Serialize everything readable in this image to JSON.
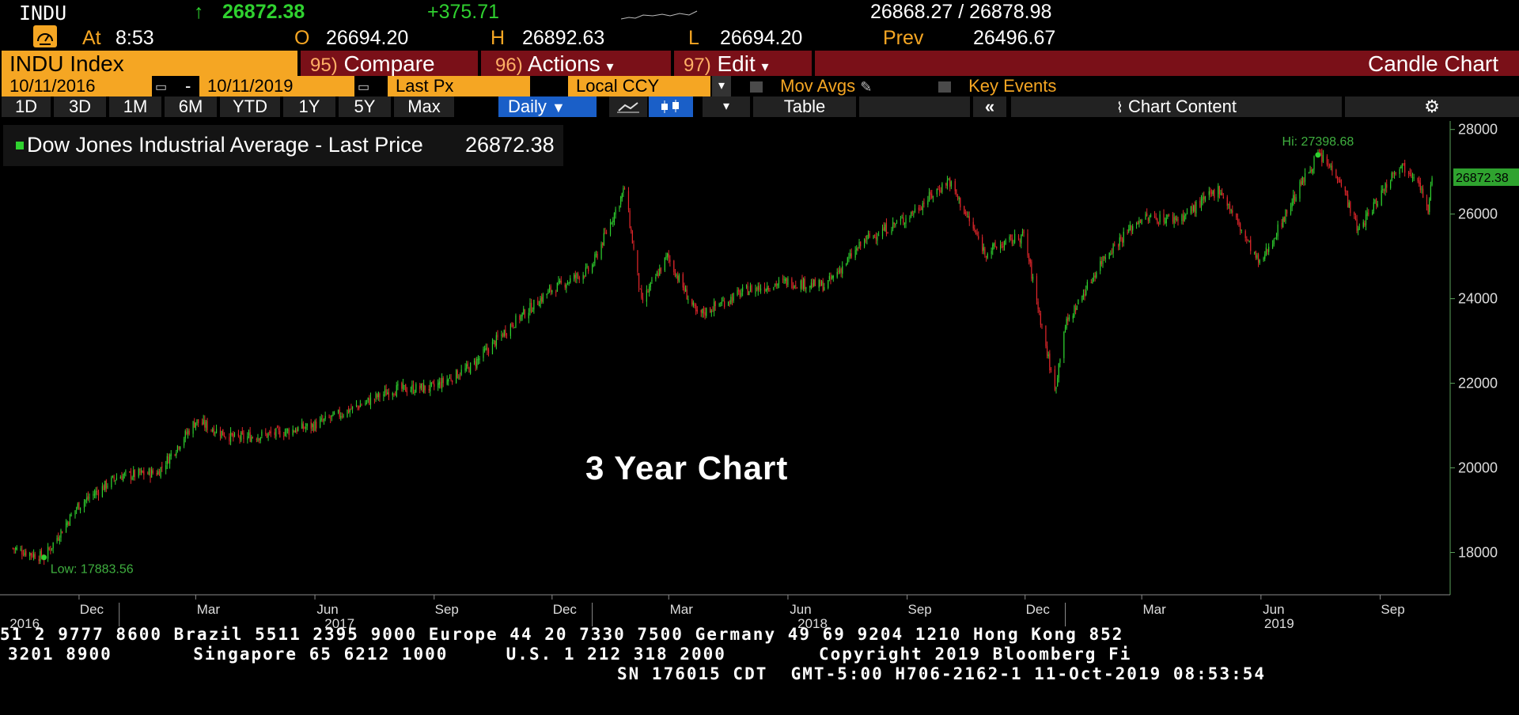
{
  "quote": {
    "ticker": "INDU",
    "arrow": "↑",
    "last": "26872.38",
    "change": "+375.71",
    "bid_ask": "26868.27 / 26878.98",
    "at_label": "At",
    "time": "8:53",
    "open_label": "O",
    "open": "26694.20",
    "high_label": "H",
    "high": "26892.63",
    "low_label": "L",
    "low": "26694.20",
    "prev_label": "Prev",
    "prev": "26496.67"
  },
  "toolbar": {
    "security": "INDU Index",
    "compare_num": "95)",
    "compare": "Compare",
    "actions_num": "96)",
    "actions": "Actions",
    "edit_num": "97)",
    "edit": "Edit",
    "chart_type": "Candle Chart"
  },
  "settings": {
    "start_date": "10/11/2016",
    "dash": "-",
    "end_date": "10/11/2019",
    "field": "Last Px",
    "currency": "Local CCY",
    "mov_avgs": "Mov Avgs",
    "key_events": "Key Events"
  },
  "periods": {
    "items": [
      "1D",
      "3D",
      "1M",
      "6M",
      "YTD",
      "1Y",
      "5Y",
      "Max"
    ],
    "frequency": "Daily",
    "table": "Table",
    "chart_content": "Chart Content"
  },
  "legend": {
    "series": "Dow Jones Industrial Average - Last Price",
    "value": "26872.38"
  },
  "chart_data": {
    "type": "candlestick",
    "title": "3 Year Chart",
    "ylim": [
      17000,
      28200
    ],
    "y_ticks": [
      "28000",
      "26000",
      "24000",
      "22000",
      "20000",
      "18000"
    ],
    "x_month_labels": [
      "Dec",
      "Mar",
      "Jun",
      "Sep",
      "Dec",
      "Mar",
      "Jun",
      "Sep",
      "Dec",
      "Mar",
      "Jun",
      "Sep"
    ],
    "x_year_labels": [
      "2016",
      "2017",
      "2018",
      "2019"
    ],
    "hi_label": "Hi: 27398.68",
    "low_label": "Low: 17883.56",
    "last_label": "26872.38",
    "path_points": [
      [
        "2016-10-11",
        18100
      ],
      [
        "2016-11-04",
        17884
      ],
      [
        "2016-11-30",
        19100
      ],
      [
        "2016-12-31",
        19800
      ],
      [
        "2017-01-31",
        19900
      ],
      [
        "2017-03-01",
        21100
      ],
      [
        "2017-03-31",
        20700
      ],
      [
        "2017-04-30",
        20800
      ],
      [
        "2017-05-31",
        21000
      ],
      [
        "2017-06-30",
        21400
      ],
      [
        "2017-07-31",
        21850
      ],
      [
        "2017-08-31",
        21900
      ],
      [
        "2017-09-30",
        22400
      ],
      [
        "2017-10-31",
        23400
      ],
      [
        "2017-11-30",
        24200
      ],
      [
        "2017-12-31",
        24700
      ],
      [
        "2018-01-26",
        26600
      ],
      [
        "2018-02-08",
        23900
      ],
      [
        "2018-02-28",
        25000
      ],
      [
        "2018-03-23",
        23600
      ],
      [
        "2018-04-30",
        24200
      ],
      [
        "2018-05-31",
        24400
      ],
      [
        "2018-06-30",
        24300
      ],
      [
        "2018-07-31",
        25400
      ],
      [
        "2018-08-31",
        25900
      ],
      [
        "2018-10-03",
        26800
      ],
      [
        "2018-10-31",
        25100
      ],
      [
        "2018-11-30",
        25500
      ],
      [
        "2018-12-24",
        21800
      ],
      [
        "2018-12-31",
        23300
      ],
      [
        "2019-01-31",
        25000
      ],
      [
        "2019-02-28",
        25900
      ],
      [
        "2019-03-31",
        25900
      ],
      [
        "2019-04-30",
        26600
      ],
      [
        "2019-05-31",
        24800
      ],
      [
        "2019-06-30",
        26600
      ],
      [
        "2019-07-15",
        27399
      ],
      [
        "2019-07-31",
        26900
      ],
      [
        "2019-08-15",
        25600
      ],
      [
        "2019-08-31",
        26400
      ],
      [
        "2019-09-15",
        27200
      ],
      [
        "2019-09-30",
        26900
      ],
      [
        "2019-10-08",
        26000
      ],
      [
        "2019-10-11",
        26872
      ]
    ]
  },
  "footer": {
    "line1": "51 2 9777 8600 Brazil 5511 2395 9000 Europe 44 20 7330 7500 Germany 49 69 9204 1210 Hong Kong 852",
    "line2": "3201 8900       Singapore 65 6212 1000     U.S. 1 212 318 2000        Copyright 2019 Bloomberg Fi",
    "line3": "SN 176015 CDT  GMT-5:00 H706-2162-1 11-Oct-2019 08:53:54"
  },
  "colors": {
    "orange": "#f5a623",
    "dark_red": "#7a1018",
    "blue": "#1a5fc8",
    "green": "#2fd12f",
    "red": "#e0262b"
  }
}
